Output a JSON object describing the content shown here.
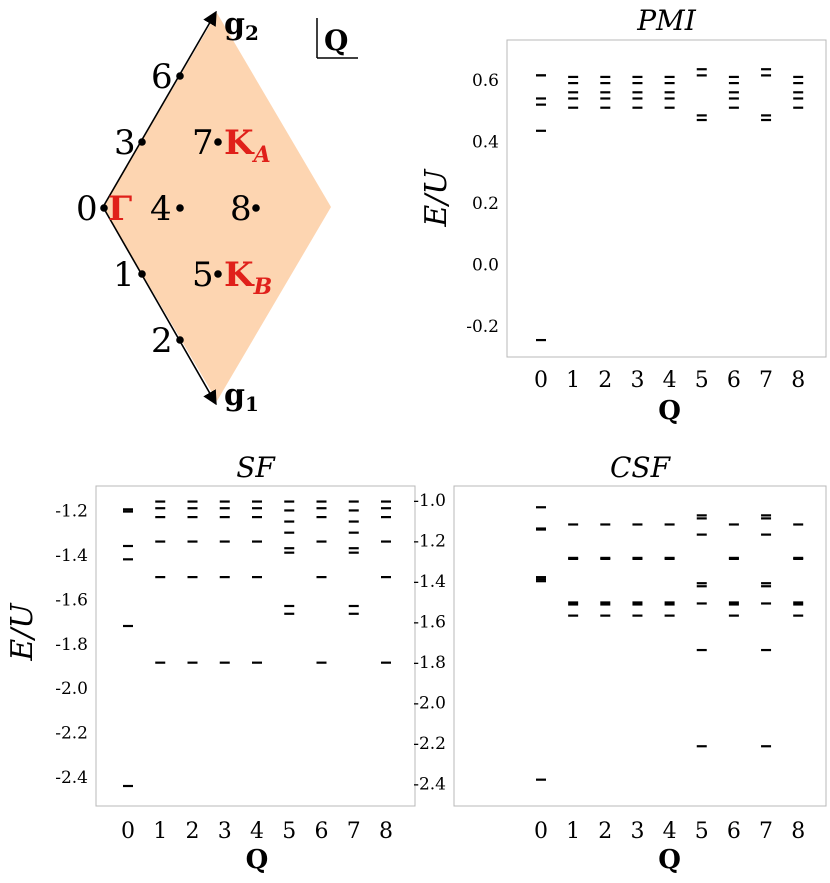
{
  "bz": {
    "point_labels": [
      "0",
      "1",
      "2",
      "3",
      "4",
      "5",
      "6",
      "7",
      "8"
    ],
    "gamma": "Γ",
    "ka": "K",
    "ka_sub": "A",
    "kb": "K",
    "kb_sub": "B",
    "g1": "g",
    "g1_sub": "1",
    "g2": "g",
    "g2_sub": "2",
    "q_label": "Q",
    "fill_color": "#fdd5b1"
  },
  "chart_data": [
    {
      "type": "scatter",
      "title": "PMI",
      "xlabel": "Q",
      "ylabel": "E/U",
      "x_ticks": [
        "0",
        "1",
        "2",
        "3",
        "4",
        "5",
        "6",
        "7",
        "8"
      ],
      "y_ticks": [
        "-0.2",
        "0.0",
        "0.2",
        "0.4",
        "0.6"
      ],
      "ylim": [
        -0.3,
        0.73
      ],
      "levels": [
        {
          "q": 0,
          "E": [
            0.615,
            0.615,
            0.54,
            0.52,
            0.435,
            -0.245
          ]
        },
        {
          "q": 1,
          "E": [
            0.61,
            0.59,
            0.56,
            0.54,
            0.51
          ]
        },
        {
          "q": 2,
          "E": [
            0.61,
            0.59,
            0.56,
            0.54,
            0.51
          ]
        },
        {
          "q": 3,
          "E": [
            0.61,
            0.59,
            0.56,
            0.54,
            0.51
          ]
        },
        {
          "q": 4,
          "E": [
            0.61,
            0.59,
            0.56,
            0.54,
            0.51
          ]
        },
        {
          "q": 5,
          "E": [
            0.635,
            0.615,
            0.485,
            0.47
          ]
        },
        {
          "q": 6,
          "E": [
            0.61,
            0.59,
            0.56,
            0.54,
            0.51
          ]
        },
        {
          "q": 7,
          "E": [
            0.635,
            0.615,
            0.485,
            0.47
          ]
        },
        {
          "q": 8,
          "E": [
            0.61,
            0.59,
            0.56,
            0.54,
            0.51
          ]
        }
      ]
    },
    {
      "type": "scatter",
      "title": "SF",
      "xlabel": "Q",
      "ylabel": "E/U",
      "x_ticks": [
        "0",
        "1",
        "2",
        "3",
        "4",
        "5",
        "6",
        "7",
        "8"
      ],
      "y_ticks": [
        "-2.4",
        "-2.2",
        "-2.0",
        "-1.8",
        "-1.6",
        "-1.4",
        "-1.2"
      ],
      "ylim": [
        -2.53,
        -1.09
      ],
      "levels": [
        {
          "q": 0,
          "E": [
            -1.195,
            -1.205,
            -1.36,
            -1.42,
            -1.72,
            -2.44
          ]
        },
        {
          "q": 1,
          "E": [
            -1.16,
            -1.19,
            -1.23,
            -1.34,
            -1.5,
            -1.885
          ]
        },
        {
          "q": 2,
          "E": [
            -1.16,
            -1.19,
            -1.23,
            -1.34,
            -1.5,
            -1.885
          ]
        },
        {
          "q": 3,
          "E": [
            -1.16,
            -1.19,
            -1.23,
            -1.34,
            -1.5,
            -1.885
          ]
        },
        {
          "q": 4,
          "E": [
            -1.16,
            -1.19,
            -1.23,
            -1.34,
            -1.5,
            -1.885
          ]
        },
        {
          "q": 5,
          "E": [
            -1.16,
            -1.2,
            -1.25,
            -1.3,
            -1.37,
            -1.39,
            -1.63,
            -1.665
          ]
        },
        {
          "q": 6,
          "E": [
            -1.16,
            -1.19,
            -1.23,
            -1.34,
            -1.5,
            -1.885
          ]
        },
        {
          "q": 7,
          "E": [
            -1.16,
            -1.2,
            -1.25,
            -1.3,
            -1.37,
            -1.39,
            -1.63,
            -1.665
          ]
        },
        {
          "q": 8,
          "E": [
            -1.16,
            -1.19,
            -1.23,
            -1.34,
            -1.5,
            -1.885
          ]
        }
      ]
    },
    {
      "type": "scatter",
      "title": "CSF",
      "xlabel": "Q",
      "ylabel": "",
      "x_ticks": [
        "0",
        "1",
        "2",
        "3",
        "4",
        "5",
        "6",
        "7",
        "8"
      ],
      "y_ticks": [
        "-2.4",
        "-2.2",
        "-2.0",
        "-1.8",
        "-1.6",
        "-1.4",
        "-1.2",
        "-1.0"
      ],
      "ylim": [
        -2.51,
        -0.93
      ],
      "levels": [
        {
          "q": 0,
          "E": [
            -1.035,
            -1.14,
            -1.145,
            -1.38,
            -1.39,
            -1.4,
            -2.38
          ]
        },
        {
          "q": 1,
          "E": [
            -1.12,
            -1.285,
            -1.29,
            -1.505,
            -1.515,
            -1.57
          ]
        },
        {
          "q": 2,
          "E": [
            -1.12,
            -1.285,
            -1.29,
            -1.505,
            -1.515,
            -1.57
          ]
        },
        {
          "q": 3,
          "E": [
            -1.12,
            -1.285,
            -1.29,
            -1.505,
            -1.515,
            -1.57
          ]
        },
        {
          "q": 4,
          "E": [
            -1.12,
            -1.285,
            -1.29,
            -1.505,
            -1.515,
            -1.57
          ]
        },
        {
          "q": 5,
          "E": [
            -1.075,
            -1.09,
            -1.17,
            -1.41,
            -1.425,
            -1.51,
            -1.74,
            -2.215
          ]
        },
        {
          "q": 6,
          "E": [
            -1.12,
            -1.285,
            -1.29,
            -1.505,
            -1.515,
            -1.57
          ]
        },
        {
          "q": 7,
          "E": [
            -1.075,
            -1.09,
            -1.17,
            -1.41,
            -1.425,
            -1.51,
            -1.74,
            -2.215
          ]
        },
        {
          "q": 8,
          "E": [
            -1.12,
            -1.285,
            -1.29,
            -1.505,
            -1.515,
            -1.57
          ]
        }
      ]
    }
  ]
}
